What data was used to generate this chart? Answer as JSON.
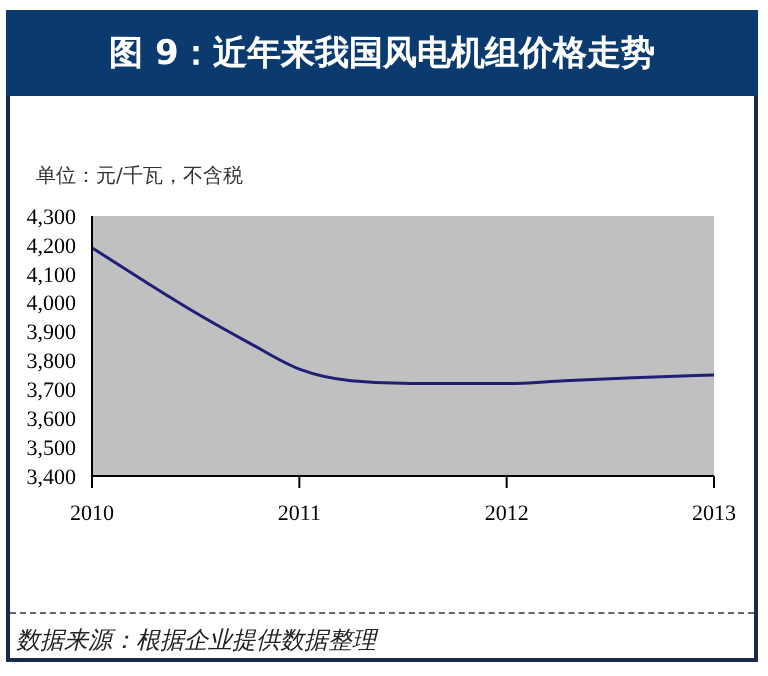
{
  "chart_data": {
    "type": "line",
    "title": "图 9：近年来我国风电机组价格走势",
    "ylabel": "单位：元/千瓦，不含税",
    "x": [
      2010,
      2010.24,
      2010.5,
      2010.76,
      2011,
      2011.25,
      2011.54,
      2012,
      2012.28,
      2012.61,
      2013
    ],
    "series": [
      {
        "color": "#1f1f78",
        "values": [
          4190,
          4080,
          3965,
          3860,
          3770,
          3730,
          3720,
          3720,
          3730,
          3740,
          3750
        ]
      }
    ],
    "xlim": [
      2010,
      2013
    ],
    "xticks": [
      2010,
      2011,
      2012,
      2013
    ],
    "ylim": [
      3400,
      4300
    ],
    "yticks": [
      {
        "value": 3400,
        "label": "3,400"
      },
      {
        "value": 3500,
        "label": "3,500"
      },
      {
        "value": 3600,
        "label": "3,600"
      },
      {
        "value": 3700,
        "label": "3,700"
      },
      {
        "value": 3800,
        "label": "3,800"
      },
      {
        "value": 3900,
        "label": "3,900"
      },
      {
        "value": 4000,
        "label": "4,000"
      },
      {
        "value": 4100,
        "label": "4,100"
      },
      {
        "value": 4200,
        "label": "4,200"
      },
      {
        "value": 4300,
        "label": "4,300"
      }
    ],
    "annotations": [
      "数据来源：根据企业提供数据整理"
    ]
  }
}
